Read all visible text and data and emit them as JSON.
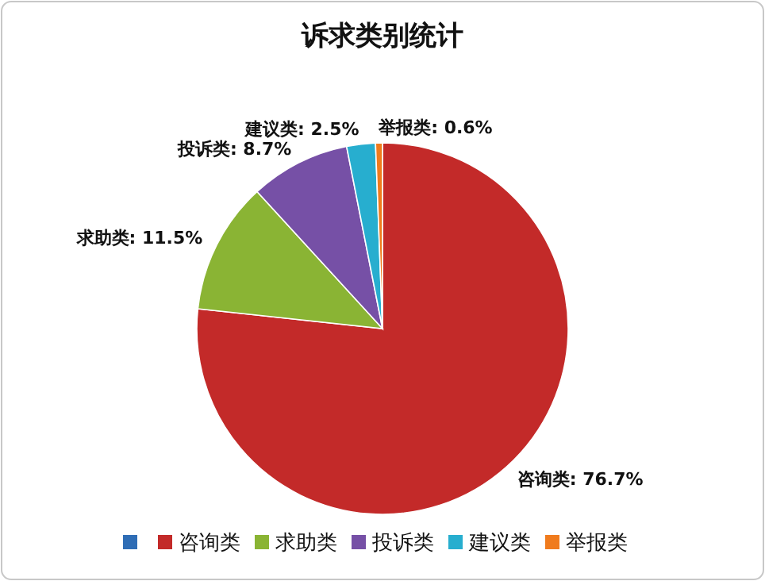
{
  "chart_data": {
    "type": "pie",
    "title": "诉求类别统计",
    "categories": [
      null,
      "咨询类",
      "求助类",
      "投诉类",
      "建议类",
      "举报类"
    ],
    "values": [
      0,
      76.7,
      11.5,
      8.7,
      2.5,
      0.6
    ],
    "colors": [
      "#2f6db5",
      "#c32a29",
      "#8ab434",
      "#7650a6",
      "#27aecf",
      "#f07b1d"
    ],
    "value_labels": [
      null,
      "咨询类: 76.7%",
      "求助类: 11.5%",
      "投诉类: 8.7%",
      "建议类: 2.5%",
      "举报类: 0.6%"
    ],
    "legend": "bottom"
  }
}
